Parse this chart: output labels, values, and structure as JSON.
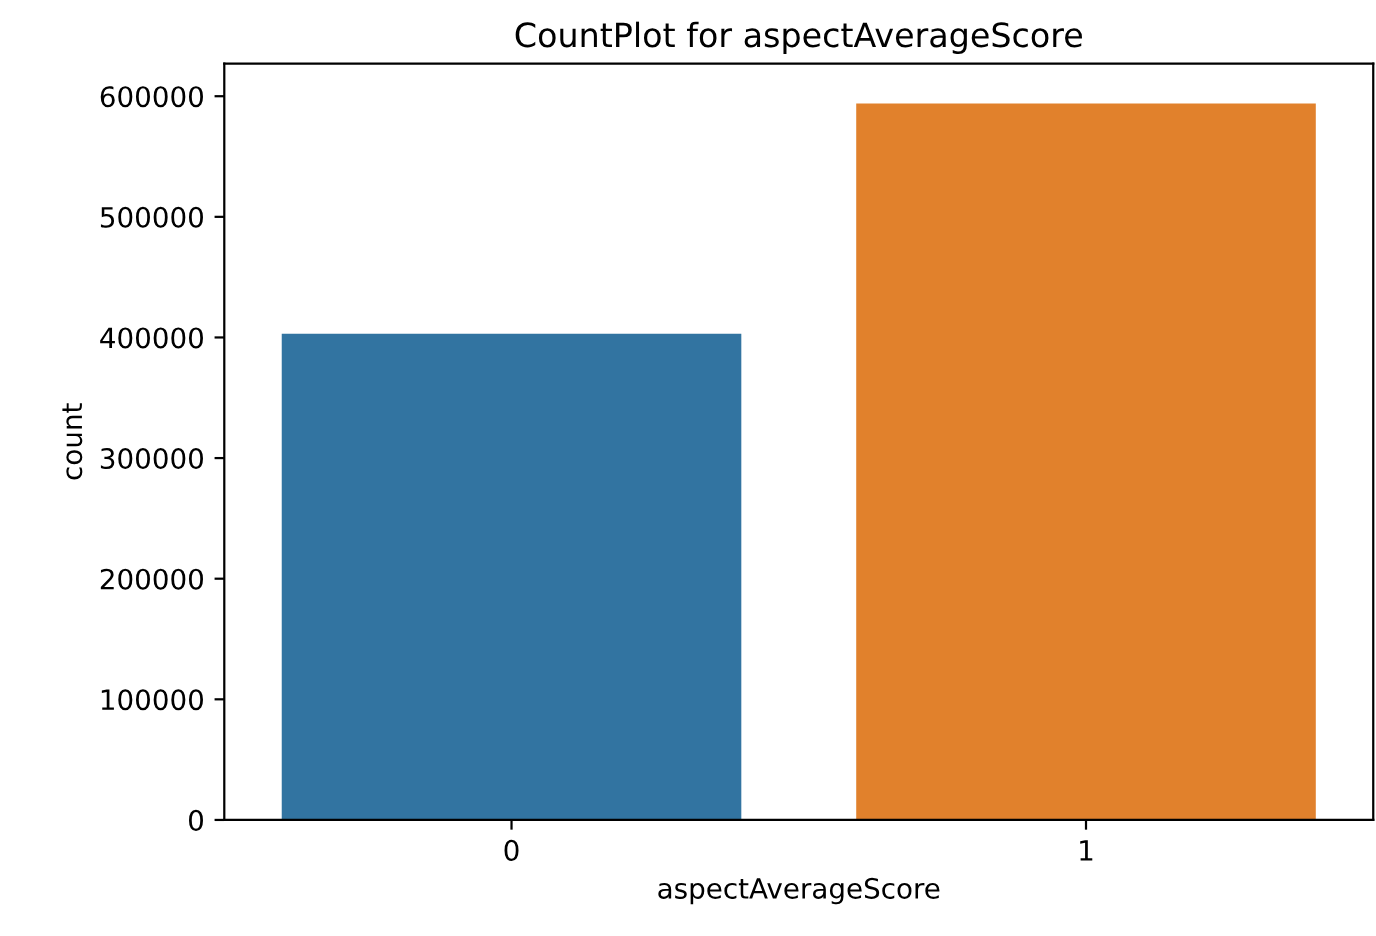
{
  "chart_data": {
    "type": "bar",
    "title": "CountPlot for aspectAverageScore",
    "xlabel": "aspectAverageScore",
    "ylabel": "count",
    "categories": [
      "0",
      "1"
    ],
    "values": [
      403000,
      594000
    ],
    "colors": [
      "#3274a1",
      "#e1812c"
    ],
    "ylim": [
      0,
      627000
    ],
    "yticks": [
      0,
      100000,
      200000,
      300000,
      400000,
      500000,
      600000
    ],
    "grid": false
  }
}
